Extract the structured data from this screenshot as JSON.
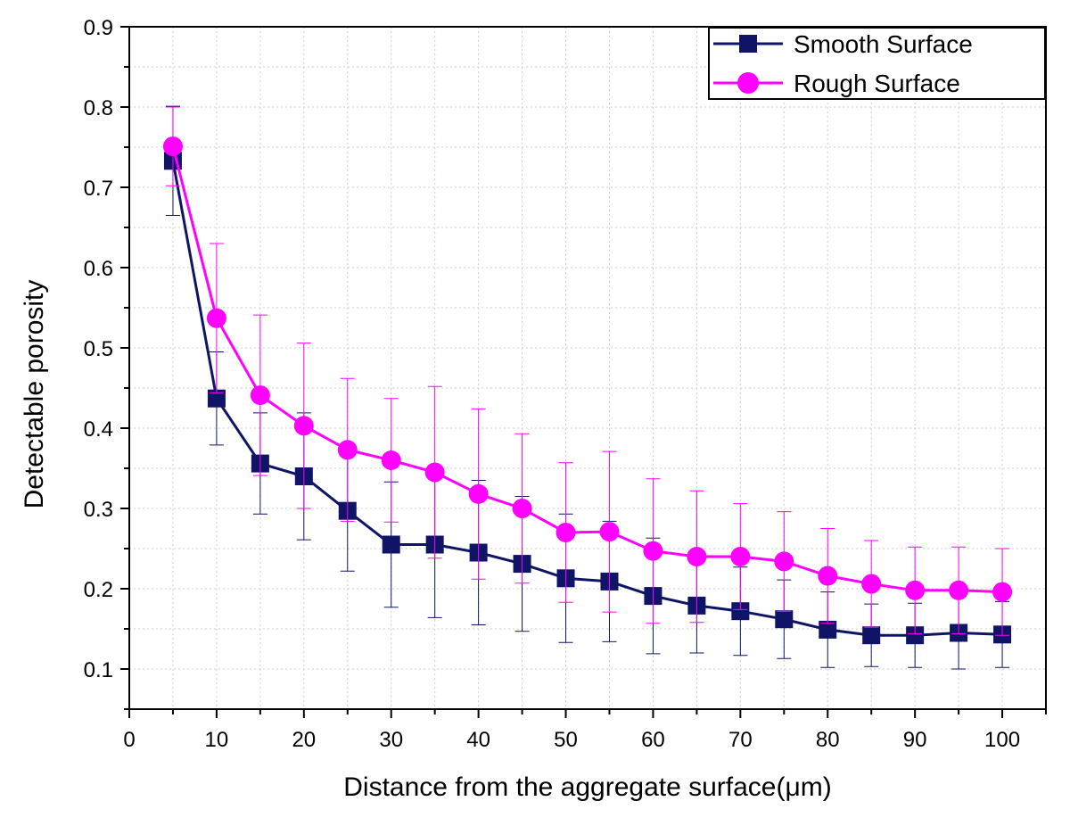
{
  "chart_data": {
    "type": "line",
    "title": "",
    "xlabel": "Distance from the aggregate surface(μm)",
    "ylabel": "Detectable porosity",
    "xlim": [
      0,
      105
    ],
    "ylim": [
      0.05,
      0.9
    ],
    "xticks": [
      0,
      10,
      20,
      30,
      40,
      50,
      60,
      70,
      80,
      90,
      100
    ],
    "yticks": [
      0.1,
      0.2,
      0.3,
      0.4,
      0.5,
      0.6,
      0.7,
      0.8,
      0.9
    ],
    "xtick_labels": [
      "0",
      "10",
      "20",
      "30",
      "40",
      "50",
      "60",
      "70",
      "80",
      "90",
      "100"
    ],
    "ytick_labels": [
      "0.1",
      "0.2",
      "0.3",
      "0.4",
      "0.5",
      "0.6",
      "0.7",
      "0.8",
      "0.9"
    ],
    "grid": true,
    "legend_position": "top-right",
    "x": [
      5,
      10,
      15,
      20,
      25,
      30,
      35,
      40,
      45,
      50,
      55,
      60,
      65,
      70,
      75,
      80,
      85,
      90,
      95,
      100
    ],
    "series": [
      {
        "name": "Smooth Surface",
        "marker": "square",
        "color": "#0f1466",
        "values": [
          0.733,
          0.437,
          0.356,
          0.34,
          0.297,
          0.255,
          0.255,
          0.245,
          0.231,
          0.213,
          0.209,
          0.191,
          0.179,
          0.172,
          0.162,
          0.149,
          0.142,
          0.142,
          0.145,
          0.143
        ],
        "err_lower": [
          0.068,
          0.058,
          0.063,
          0.079,
          0.075,
          0.078,
          0.091,
          0.09,
          0.084,
          0.08,
          0.075,
          0.072,
          0.059,
          0.055,
          0.049,
          0.047,
          0.039,
          0.04,
          0.045,
          0.041
        ],
        "err_upper": [
          0.068,
          0.058,
          0.063,
          0.079,
          0.075,
          0.078,
          0.091,
          0.09,
          0.084,
          0.08,
          0.075,
          0.072,
          0.059,
          0.055,
          0.049,
          0.047,
          0.039,
          0.04,
          0.045,
          0.041
        ]
      },
      {
        "name": "Rough Surface",
        "marker": "circle",
        "color": "#ff00ff",
        "values": [
          0.751,
          0.537,
          0.441,
          0.403,
          0.373,
          0.36,
          0.345,
          0.318,
          0.3,
          0.27,
          0.271,
          0.247,
          0.24,
          0.24,
          0.234,
          0.216,
          0.206,
          0.198,
          0.198,
          0.196
        ],
        "err_lower": [
          0.049,
          0.093,
          0.1,
          0.103,
          0.089,
          0.077,
          0.107,
          0.106,
          0.093,
          0.087,
          0.1,
          0.09,
          0.082,
          0.066,
          0.062,
          0.059,
          0.054,
          0.054,
          0.054,
          0.054
        ],
        "err_upper": [
          0.049,
          0.093,
          0.1,
          0.103,
          0.089,
          0.077,
          0.107,
          0.106,
          0.093,
          0.087,
          0.1,
          0.09,
          0.082,
          0.066,
          0.062,
          0.059,
          0.054,
          0.054,
          0.054,
          0.054
        ]
      }
    ]
  }
}
